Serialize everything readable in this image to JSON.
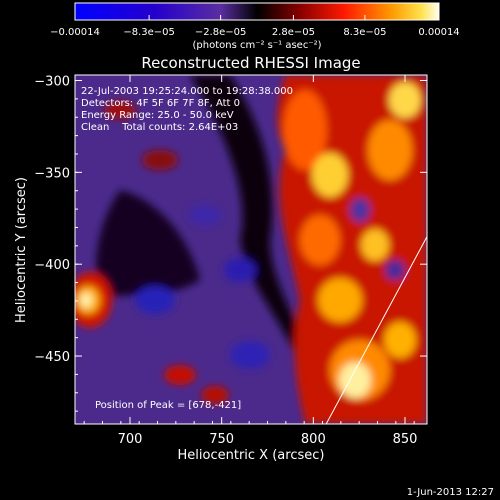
{
  "chart_data": {
    "type": "heatmap",
    "title": "Reconstructed RHESSI Image",
    "xlabel": "Heliocentric X (arcsec)",
    "ylabel": "Heliocentric Y (arcsec)",
    "xlim": [
      670,
      862
    ],
    "ylim": [
      -487,
      -297
    ],
    "x_ticks": [
      700,
      750,
      800,
      850
    ],
    "x_tick_labels": [
      "700",
      "750",
      "800",
      "850"
    ],
    "y_ticks": [
      -300,
      -350,
      -400,
      -450
    ],
    "y_tick_labels": [
      "−300",
      "−350",
      "−400",
      "−450"
    ],
    "colorbar": {
      "range": [
        -0.00014,
        0.00014
      ],
      "tick_values": [
        -0.00014,
        -8.3e-05,
        -2.8e-05,
        2.8e-05,
        8.3e-05,
        0.00014
      ],
      "tick_labels": [
        "−0.00014",
        "−8.3e−05",
        "−2.8e−05",
        "2.8e−05",
        "8.3e−05",
        "0.00014"
      ],
      "unit_label": "(photons cm⁻² s⁻¹ asec⁻²)"
    },
    "annotations": [
      "22-Jul-2003 19:25:24.000 to 19:28:38.000",
      "Detectors: 4F 5F 6F 7F 8F, Att 0",
      "Energy Range: 25.0 - 50.0 keV",
      "Clean    Total counts: 2.64E+03"
    ],
    "peak_label": "Position of Peak = [678,-421]",
    "peak_position": [
      678,
      -421
    ],
    "limb_line": [
      [
        807,
        -487
      ],
      [
        862,
        -385
      ]
    ],
    "grid": false
  },
  "footer_date": "1-Jun-2013 12:27"
}
